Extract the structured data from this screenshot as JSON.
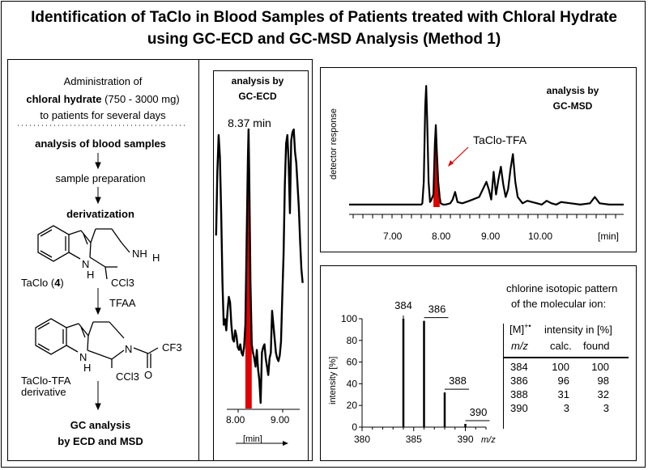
{
  "title": {
    "line1": "Identification of TaClo in Blood Samples of Patients treated with Chloral Hydrate",
    "line2": "using GC-ECD and GC-MSD Analysis (Method 1)"
  },
  "workflow": {
    "admin_line1": "Administration of",
    "admin_bold": "chloral hydrate",
    "admin_dose": " (750 - 3000 mg)",
    "admin_line3": "to patients for several days",
    "step1": "analysis of blood samples",
    "step2": "sample preparation",
    "step3": "derivatization",
    "taclo_label": "TaClo (",
    "taclo_num": "4",
    "taclo_close": ")",
    "reagent": "TFAA",
    "deriv_line1": "TaClo-TFA",
    "deriv_line2": "derivative",
    "final_line1": "GC analysis",
    "final_line2": "by ECD and MSD"
  },
  "structure_labels": {
    "N": "N",
    "H": "H",
    "NH": "NH",
    "CCl3": "CCl3",
    "CF3": "CF3",
    "O": "O"
  },
  "ecd": {
    "header_line1": "analysis by",
    "header_line2": "GC-ECD",
    "peak_label": "8.37 min",
    "x_unit": "[min]"
  },
  "msd": {
    "header_line1": "analysis by",
    "header_line2": "GC-MSD",
    "ylabel": "detector response",
    "peak_label": "TaClo-TFA",
    "x_unit": "[min]"
  },
  "mass": {
    "ylabel": "intensity [%]",
    "xlabel": "m/z",
    "iso_title_line1": "chlorine isotopic pattern",
    "iso_title_line2": "of the molecular ion:",
    "col_head_mz_top": "[M]",
    "col_head_mz_sup": "+•",
    "col_head_mz": "m/z",
    "col_head_int": "intensity in [%]",
    "col_head_calc": "calc.",
    "col_head_found": "found",
    "rows": [
      {
        "mz": "384",
        "calc": "100",
        "found": "100"
      },
      {
        "mz": "386",
        "calc": "96",
        "found": "98"
      },
      {
        "mz": "388",
        "calc": "31",
        "found": "32"
      },
      {
        "mz": "390",
        "calc": "3",
        "found": "3"
      }
    ]
  },
  "colors": {
    "highlight": "#e00000",
    "line": "#000000"
  },
  "chart_data": [
    {
      "type": "line",
      "name": "gc-ecd-chromatogram",
      "title": "analysis by GC-ECD",
      "xlabel": "[min]",
      "ylabel": "",
      "xlim": [
        7.85,
        9.25
      ],
      "ylim": [
        0,
        100
      ],
      "x_ticks": [
        "8.00",
        "9.00"
      ],
      "annotation": "8.37 min",
      "x": [
        7.86,
        7.88,
        7.9,
        7.92,
        7.94,
        7.96,
        7.98,
        8.0,
        8.02,
        8.04,
        8.06,
        8.08,
        8.1,
        8.12,
        8.14,
        8.16,
        8.18,
        8.2,
        8.22,
        8.24,
        8.26,
        8.28,
        8.3,
        8.32,
        8.34,
        8.36,
        8.37,
        8.38,
        8.4,
        8.42,
        8.44,
        8.46,
        8.48,
        8.5,
        8.52,
        8.54,
        8.56,
        8.58,
        8.6,
        8.62,
        8.64,
        8.66,
        8.68,
        8.7,
        8.72,
        8.74,
        8.76,
        8.78,
        8.8,
        8.82,
        8.84,
        8.86,
        8.88,
        8.9,
        8.92,
        8.94,
        8.96,
        8.98,
        9.0,
        9.02,
        9.04,
        9.06,
        9.08,
        9.1,
        9.12,
        9.14,
        9.16,
        9.18,
        9.2,
        9.22
      ],
      "y": [
        62,
        85,
        98,
        90,
        70,
        45,
        30,
        32,
        28,
        35,
        40,
        38,
        30,
        25,
        24,
        28,
        26,
        22,
        21,
        23,
        20,
        19,
        22,
        30,
        60,
        90,
        100,
        85,
        45,
        23,
        20,
        18,
        15,
        21,
        14,
        10,
        2,
        20,
        22,
        23,
        18,
        15,
        12,
        18,
        20,
        35,
        30,
        25,
        20,
        18,
        17,
        19,
        24,
        40,
        55,
        80,
        95,
        98,
        88,
        70,
        96,
        99,
        100,
        92,
        88,
        80,
        72,
        60,
        50,
        45
      ],
      "highlight_range": [
        8.32,
        8.42
      ]
    },
    {
      "type": "line",
      "name": "gc-msd-chromatogram",
      "title": "analysis by GC-MSD",
      "xlabel": "[min]",
      "ylabel": "detector response",
      "xlim": [
        6.1,
        11.8
      ],
      "ylim": [
        0,
        100
      ],
      "x_ticks": [
        "7.00",
        "8.00",
        "9.00",
        "10.00"
      ],
      "annotation": "TaClo-TFA",
      "x": [
        6.1,
        6.5,
        7.0,
        7.3,
        7.5,
        7.6,
        7.62,
        7.65,
        7.68,
        7.7,
        7.72,
        7.75,
        7.78,
        7.8,
        7.85,
        7.88,
        7.9,
        7.92,
        7.95,
        7.98,
        8.0,
        8.05,
        8.1,
        8.2,
        8.25,
        8.3,
        8.35,
        8.45,
        8.6,
        8.8,
        8.95,
        9.0,
        9.05,
        9.1,
        9.15,
        9.2,
        9.25,
        9.3,
        9.35,
        9.4,
        9.45,
        9.5,
        9.55,
        9.6,
        9.7,
        9.8,
        9.9,
        10.0,
        10.1,
        10.2,
        10.3,
        10.4,
        10.5,
        10.7,
        10.9,
        11.1,
        11.2,
        11.3,
        11.5,
        11.8
      ],
      "y": [
        2,
        2,
        2,
        2,
        2,
        2,
        3,
        20,
        80,
        96,
        70,
        20,
        4,
        5,
        10,
        50,
        65,
        45,
        20,
        8,
        3,
        2,
        2,
        3,
        6,
        12,
        4,
        3,
        5,
        8,
        20,
        14,
        6,
        28,
        10,
        22,
        32,
        18,
        8,
        14,
        30,
        42,
        20,
        8,
        3,
        5,
        4,
        3,
        2,
        5,
        3,
        2,
        4,
        3,
        2,
        3,
        8,
        3,
        2,
        2
      ],
      "highlight_range": [
        7.85,
        7.98
      ]
    },
    {
      "type": "bar",
      "name": "mass-spectrum-molecular-ion",
      "xlabel": "m/z",
      "ylabel": "intensity [%]",
      "xlim": [
        380,
        392
      ],
      "ylim": [
        0,
        100
      ],
      "x_ticks": [
        380,
        385,
        390
      ],
      "y_ticks": [
        0,
        20,
        40,
        60,
        80,
        100
      ],
      "x": [
        384,
        386,
        388,
        390
      ],
      "values": [
        100,
        98,
        32,
        3
      ],
      "bar_labels": [
        "384",
        "386",
        "388",
        "390"
      ]
    }
  ]
}
